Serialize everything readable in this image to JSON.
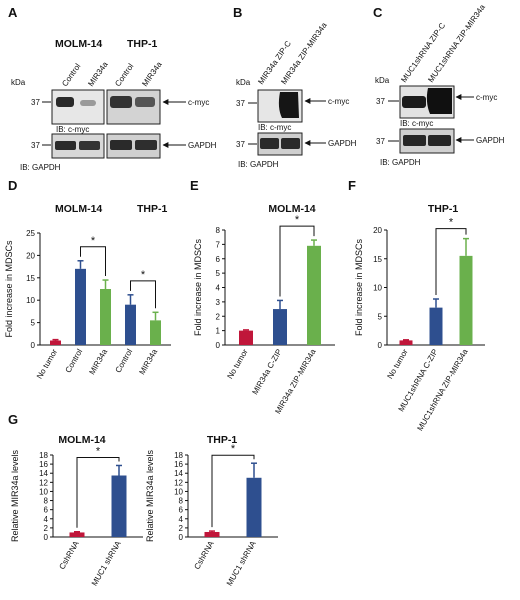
{
  "colors": {
    "red": "#c0163a",
    "blue": "#2e4f8f",
    "green": "#6ab04c",
    "ink": "#111111"
  },
  "blots": {
    "A": {
      "letter": "A",
      "kda": "kDa",
      "cell_lines": [
        "MOLM-14",
        "THP-1"
      ],
      "lanes": [
        "Control",
        "MIR34a",
        "Control",
        "MIR34a"
      ],
      "marker": "37",
      "marker2": "37",
      "target": "c-myc",
      "loading": "GAPDH",
      "ib_top": "IB: c-myc",
      "ib_bottom": "IB: GAPDH"
    },
    "B": {
      "letter": "B",
      "kda": "kDa",
      "lanes": [
        "MIR34a ZIP-C",
        "MIR34a ZIP-MIR34a"
      ],
      "marker": "37",
      "marker2": "37",
      "target": "c-myc",
      "loading": "GAPDH",
      "ib_top": "IB: c-myc",
      "ib_bottom": "IB: GAPDH"
    },
    "C": {
      "letter": "C",
      "kda": "kDa",
      "lanes": [
        "MUC1shRNA ZIP-C",
        "MUC1shRNA ZIP-MIR34a"
      ],
      "marker": "37",
      "marker2": "37",
      "target": "c-myc",
      "loading": "GAPDH",
      "ib_top": "IB: c-myc",
      "ib_bottom": "IB: GAPDH"
    }
  },
  "chart_data": [
    {
      "panel": "D",
      "type": "bar",
      "cell_lines": [
        "MOLM-14",
        "THP-1"
      ],
      "ylabel": "Fold increase in MDSCs",
      "ylim": [
        0,
        25
      ],
      "yticks": [
        0,
        5,
        10,
        15,
        20,
        25
      ],
      "categories": [
        "No tumor",
        "Control",
        "MIR34a",
        "Control",
        "MIR34a"
      ],
      "values": [
        1,
        17,
        12.5,
        9,
        5.5
      ],
      "errors": [
        0.2,
        1.8,
        2.0,
        2.2,
        1.8
      ],
      "colors": [
        "#c0163a",
        "#2e4f8f",
        "#6ab04c",
        "#2e4f8f",
        "#6ab04c"
      ],
      "significance": [
        [
          1,
          2,
          "*"
        ],
        [
          3,
          4,
          "*"
        ]
      ]
    },
    {
      "panel": "E",
      "type": "bar",
      "title": "MOLM-14",
      "ylabel": "Fold increase in MDSCs",
      "ylim": [
        0,
        8
      ],
      "yticks": [
        0,
        1,
        2,
        3,
        4,
        5,
        6,
        7,
        8
      ],
      "categories": [
        "No tumor",
        "MIR34a C-ZIP",
        "MIR34a ZIP-MIR34a"
      ],
      "values": [
        1,
        2.5,
        6.9
      ],
      "errors": [
        0.05,
        0.6,
        0.4
      ],
      "colors": [
        "#c0163a",
        "#2e4f8f",
        "#6ab04c"
      ],
      "significance": [
        [
          1,
          2,
          "*"
        ]
      ]
    },
    {
      "panel": "F",
      "type": "bar",
      "title": "THP-1",
      "ylabel": "Fold increase in MDSCs",
      "ylim": [
        0,
        20
      ],
      "yticks": [
        0,
        5,
        10,
        15,
        20
      ],
      "categories": [
        "No tumor",
        "MUC1shRNA C-ZIP",
        "MUC1shRNA ZIP-MIR34a"
      ],
      "values": [
        0.8,
        6.5,
        15.5
      ],
      "errors": [
        0.1,
        1.5,
        3.0
      ],
      "colors": [
        "#c0163a",
        "#2e4f8f",
        "#6ab04c"
      ],
      "significance": [
        [
          1,
          2,
          "*"
        ]
      ]
    },
    {
      "panel": "G",
      "type": "bar",
      "title": "MOLM-14",
      "ylabel": "Relative MIR34a levels",
      "ylim": [
        0,
        18
      ],
      "yticks": [
        0,
        2,
        4,
        6,
        8,
        10,
        12,
        14,
        16,
        18
      ],
      "categories": [
        "CshRNA",
        "MUC1 shRNA"
      ],
      "values": [
        1,
        13.5
      ],
      "errors": [
        0.15,
        2.2
      ],
      "colors": [
        "#c0163a",
        "#2e4f8f"
      ],
      "significance": [
        [
          0,
          1,
          "*"
        ]
      ]
    },
    {
      "panel": "G",
      "type": "bar",
      "title": "THP-1",
      "ylabel": "Relative MIR34a levels",
      "ylim": [
        0,
        18
      ],
      "yticks": [
        0,
        2,
        4,
        6,
        8,
        10,
        12,
        14,
        16,
        18
      ],
      "categories": [
        "CshRNA",
        "MUC1 shRNA"
      ],
      "values": [
        1.1,
        13
      ],
      "errors": [
        0.2,
        3.2
      ],
      "colors": [
        "#c0163a",
        "#2e4f8f"
      ],
      "significance": [
        [
          0,
          1,
          "*"
        ]
      ]
    }
  ],
  "panel_letters": {
    "D": "D",
    "E": "E",
    "F": "F",
    "G": "G"
  }
}
